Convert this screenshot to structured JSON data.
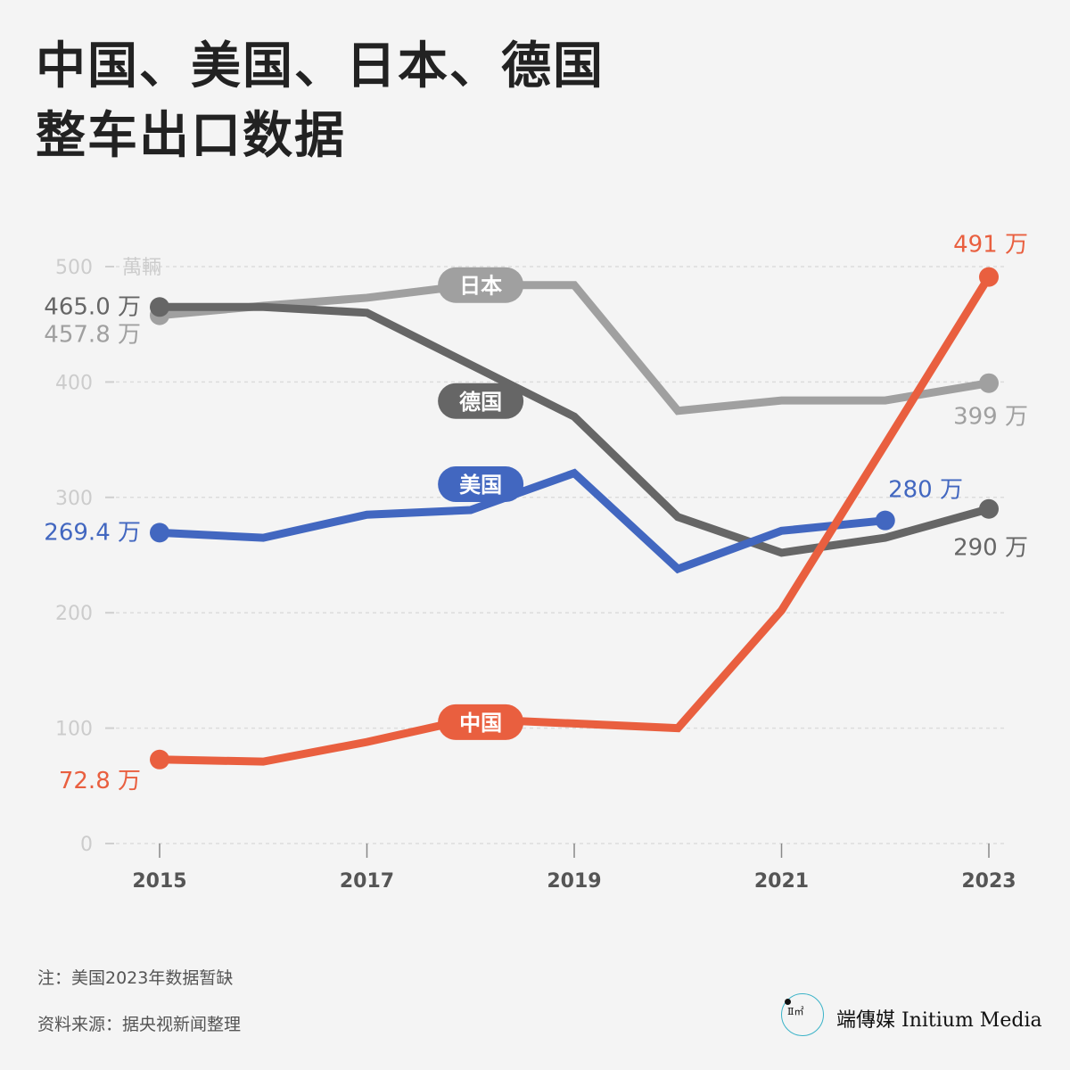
{
  "title": {
    "line1": "中国、美国、日本、德国",
    "line2": "整车出口数据"
  },
  "notes": {
    "note": "注：美国2023年数据暂缺",
    "source": "资料来源：据央视新闻整理"
  },
  "logo": {
    "cn": "端傳媒",
    "en": "Initium Media",
    "glyph": "Ⅱ㎡"
  },
  "chart_data": {
    "type": "line",
    "title": "中国、美国、日本、德国整车出口数据",
    "ylabel": "萬輛",
    "unit_suffix": "万",
    "ylim": [
      0,
      500
    ],
    "yticks": [
      0,
      100,
      200,
      300,
      400,
      500
    ],
    "ytick_labels": [
      "0",
      "100",
      "200",
      "300",
      "400",
      "500"
    ],
    "xlim": [
      2015,
      2023
    ],
    "xticks": [
      2015,
      2017,
      2019,
      2021,
      2023
    ],
    "xtick_labels": [
      "2015",
      "2017",
      "2019",
      "2021",
      "2023"
    ],
    "x": [
      2015,
      2016,
      2017,
      2018,
      2019,
      2020,
      2021,
      2022,
      2023
    ],
    "grid": true,
    "series": [
      {
        "name": "日本",
        "color": "#a0a0a0",
        "values": [
          457.8,
          466,
          473,
          484,
          484,
          375,
          384,
          384,
          399
        ],
        "start_label": "457.8 万",
        "end_label": "399 万"
      },
      {
        "name": "德国",
        "color": "#666666",
        "values": [
          465.0,
          465,
          460,
          415,
          370,
          283,
          252,
          265,
          290
        ],
        "start_label": "465.0 万",
        "end_label": "290 万"
      },
      {
        "name": "美国",
        "color": "#4267c0",
        "values": [
          269.4,
          265,
          285,
          289,
          321,
          238,
          271,
          280,
          null
        ],
        "start_label": "269.4 万",
        "end_label": "280 万"
      },
      {
        "name": "中国",
        "color": "#e95f3f",
        "values": [
          72.8,
          71,
          88,
          108,
          104,
          100,
          202,
          346,
          491
        ],
        "start_label": "72.8 万",
        "end_label": "491 万"
      }
    ]
  }
}
